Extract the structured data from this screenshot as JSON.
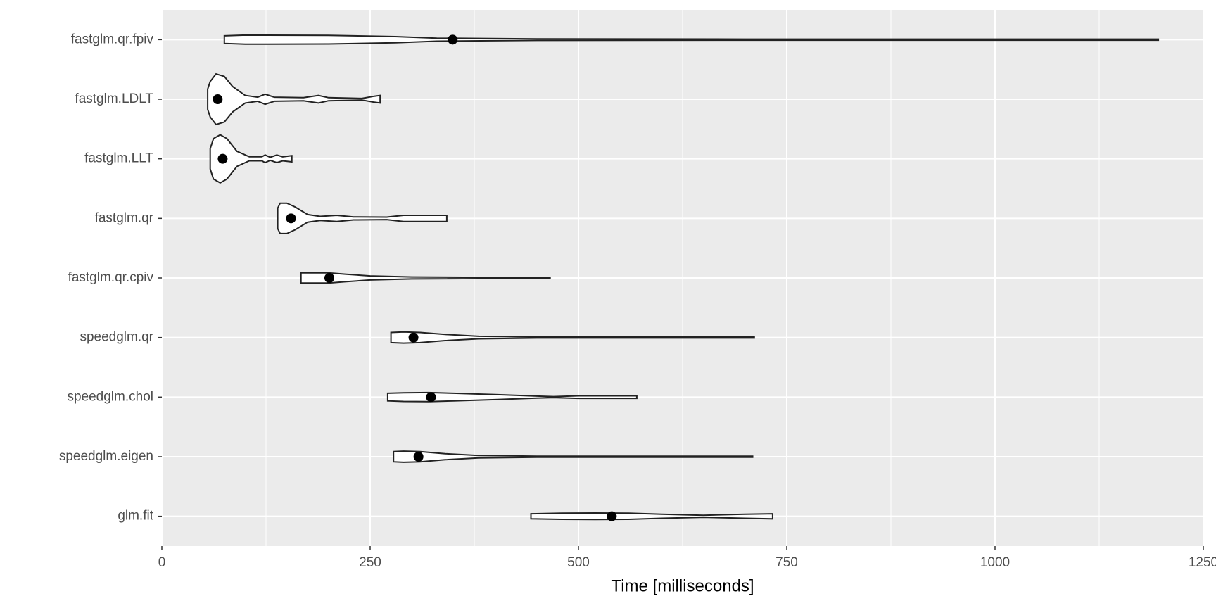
{
  "chart_data": {
    "type": "violin",
    "xlabel": "Time [milliseconds]",
    "categories": [
      "fastglm.qr.fpiv",
      "fastglm.LDLT",
      "fastglm.LLT",
      "fastglm.qr",
      "fastglm.qr.cpiv",
      "speedglm.qr",
      "speedglm.chol",
      "speedglm.eigen",
      "glm.fit"
    ],
    "medians": [
      349,
      67,
      73,
      155,
      201,
      302,
      323,
      308,
      540
    ],
    "profiles": [
      {
        "x": [
          75,
          100,
          200,
          280,
          330,
          450,
          700,
          1196
        ],
        "density": [
          0.15,
          0.18,
          0.17,
          0.12,
          0.06,
          0.03,
          0.02,
          0.02
        ]
      },
      {
        "x": [
          55,
          58,
          65,
          75,
          85,
          100,
          115,
          124,
          135,
          170,
          188,
          200,
          240,
          255,
          262
        ],
        "density": [
          0.4,
          0.7,
          1,
          0.9,
          0.5,
          0.15,
          0.08,
          0.2,
          0.08,
          0.06,
          0.15,
          0.06,
          0.03,
          0.12,
          0.15
        ]
      },
      {
        "x": [
          58,
          62,
          70,
          78,
          90,
          105,
          120,
          124,
          130,
          138,
          145,
          156
        ],
        "density": [
          0.4,
          0.8,
          0.95,
          0.8,
          0.3,
          0.08,
          0.08,
          0.15,
          0.06,
          0.15,
          0.08,
          0.12
        ]
      },
      {
        "x": [
          139,
          142,
          150,
          160,
          175,
          190,
          210,
          230,
          270,
          290,
          300,
          342
        ],
        "density": [
          0.4,
          0.6,
          0.6,
          0.45,
          0.15,
          0.08,
          0.12,
          0.06,
          0.05,
          0.12,
          0.12,
          0.12
        ]
      },
      {
        "x": [
          167,
          180,
          200,
          220,
          250,
          300,
          400,
          466
        ],
        "density": [
          0.2,
          0.2,
          0.2,
          0.15,
          0.08,
          0.04,
          0.02,
          0.02
        ]
      },
      {
        "x": [
          275,
          290,
          310,
          340,
          380,
          450,
          711
        ],
        "density": [
          0.2,
          0.22,
          0.2,
          0.12,
          0.05,
          0.02,
          0.02
        ]
      },
      {
        "x": [
          271,
          290,
          320,
          350,
          400,
          450,
          470,
          500,
          570
        ],
        "density": [
          0.15,
          0.17,
          0.18,
          0.15,
          0.1,
          0.04,
          0.02,
          0.05,
          0.05
        ]
      },
      {
        "x": [
          278,
          290,
          310,
          340,
          380,
          450,
          709
        ],
        "density": [
          0.2,
          0.22,
          0.2,
          0.12,
          0.05,
          0.02,
          0.02
        ]
      },
      {
        "x": [
          443,
          480,
          520,
          560,
          600,
          650,
          700,
          733
        ],
        "density": [
          0.1,
          0.12,
          0.13,
          0.12,
          0.08,
          0.04,
          0.08,
          0.1
        ]
      }
    ],
    "xlim": [
      0,
      1250
    ],
    "xticks": [
      0,
      250,
      500,
      750,
      1000,
      1250
    ],
    "minor_xticks": [
      125,
      375,
      625,
      875,
      1125
    ],
    "grid": true,
    "panel_color": "#ebebeb",
    "violin_fill": "#ffffff",
    "line_color": "#222222",
    "point_color": "#000000"
  }
}
